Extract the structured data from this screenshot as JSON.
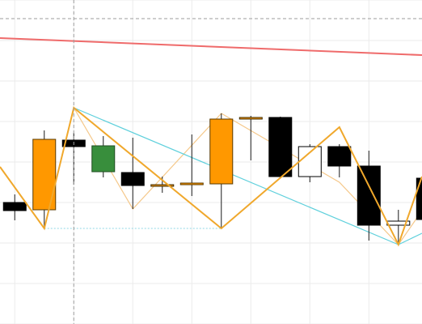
{
  "chart_data": {
    "type": "candlestick",
    "title": "",
    "xlabel": "",
    "ylabel": "",
    "grid": true,
    "ylim": [
      0,
      400
    ],
    "x_range": [
      -0.5,
      13.8
    ],
    "colors": {
      "grid": "#ebebeb",
      "crosshair": "#9e9e9e",
      "up_fill": "#ff9800",
      "down_fill": "#000000",
      "alt_up_fill": "#388e3c",
      "hollow_fill": "#ffffff",
      "wick": "#1a1a1a",
      "red_line": "#ef6b6b",
      "cyan_line": "#5fd0dc",
      "zigzag": "#f0a82c",
      "zigzag_light": "#f5c88a",
      "dotted": "#8fd8e4"
    },
    "candles": [
      {
        "x": 0,
        "open": 140,
        "close": 150,
        "high": 160,
        "low": 128,
        "style": "down"
      },
      {
        "x": 1,
        "open": 141,
        "close": 228,
        "high": 239,
        "low": 118,
        "style": "up"
      },
      {
        "x": 2,
        "open": 219,
        "close": 227,
        "high": 236,
        "low": 172,
        "style": "down"
      },
      {
        "x": 3,
        "open": 220,
        "close": 188,
        "high": 232,
        "low": 181,
        "style": "alt_up"
      },
      {
        "x": 4,
        "open": 187,
        "close": 171,
        "high": 230,
        "low": 142,
        "style": "down"
      },
      {
        "x": 5,
        "open": 172,
        "close": 171,
        "high": 182,
        "low": 162,
        "style": "doji"
      },
      {
        "x": 6,
        "open": 172,
        "close": 174,
        "high": 234,
        "low": 158,
        "style": "up"
      },
      {
        "x": 7,
        "open": 173,
        "close": 253,
        "high": 260,
        "low": 118,
        "style": "up"
      },
      {
        "x": 8,
        "open": 255,
        "close": 254,
        "high": 257,
        "low": 202,
        "style": "doji"
      },
      {
        "x": 9,
        "open": 255,
        "close": 182,
        "high": 256,
        "low": 181,
        "style": "down"
      },
      {
        "x": 10,
        "open": 219,
        "close": 182,
        "high": 222,
        "low": 175,
        "style": "hollow"
      },
      {
        "x": 11,
        "open": 219,
        "close": 195,
        "high": 222,
        "low": 181,
        "style": "down"
      },
      {
        "x": 12,
        "open": 195,
        "close": 122,
        "high": 214,
        "low": 103,
        "style": "down"
      },
      {
        "x": 13,
        "open": 122,
        "close": 127,
        "high": 141,
        "low": 98,
        "style": "hollow"
      },
      {
        "x": 14,
        "open": 180,
        "close": 129,
        "high": 220,
        "low": 127,
        "style": "down"
      }
    ],
    "red_line": {
      "from": {
        "x": -0.5,
        "y": 353
      },
      "to": {
        "x": 13.8,
        "y": 332
      }
    },
    "cyan_segments": [
      [
        {
          "x": 2,
          "y": 267
        },
        {
          "x": 13,
          "y": 98
        }
      ],
      [
        {
          "x": 13,
          "y": 98
        },
        {
          "x": 13.8,
          "y": 112
        }
      ]
    ],
    "zigzag_main": [
      {
        "x": -0.5,
        "y": 194
      },
      {
        "x": 1,
        "y": 118
      },
      {
        "x": 2,
        "y": 267
      },
      {
        "x": 7,
        "y": 118
      },
      {
        "x": 11,
        "y": 243
      },
      {
        "x": 13,
        "y": 98
      },
      {
        "x": 13.8,
        "y": 182
      }
    ],
    "zigzag_light": [
      {
        "x": -0.5,
        "y": 194
      },
      {
        "x": 1,
        "y": 118
      },
      {
        "x": 2,
        "y": 267
      },
      {
        "x": 4,
        "y": 142
      },
      {
        "x": 7,
        "y": 260
      },
      {
        "x": 11,
        "y": 175
      },
      {
        "x": 13,
        "y": 98
      },
      {
        "x": 13.8,
        "y": 140
      }
    ],
    "dotted_level": {
      "y": 118,
      "x_from": 1,
      "x_to": 7
    },
    "crosshair": {
      "x": 2,
      "y": 377
    }
  }
}
